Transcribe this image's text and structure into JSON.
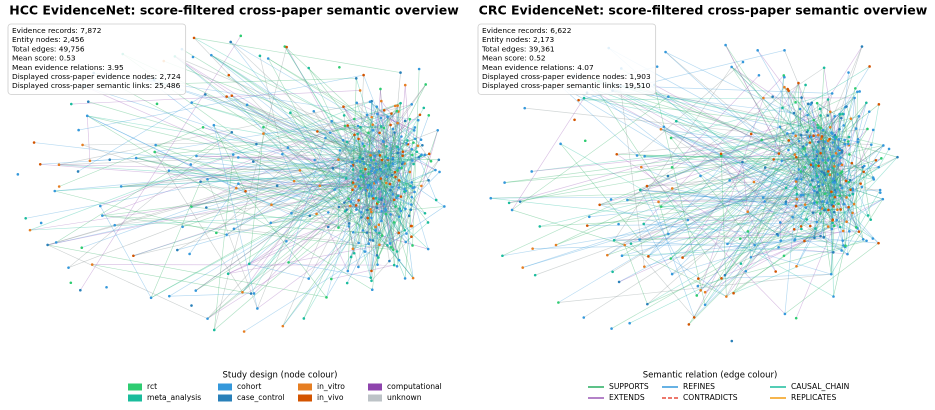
{
  "panels": [
    {
      "title": "HCC EvidenceNet: score-filtered cross-paper semantic overview",
      "stats": [
        "Evidence records: 7,872",
        "Entity nodes: 2,456",
        "Total edges: 49,756",
        "Mean score: 0.53",
        "Mean evidence relations: 3.95",
        "Displayed cross-paper evidence nodes: 2,724",
        "Displayed cross-paper semantic links: 25,486"
      ],
      "legend": {
        "title": "Study design (node colour)",
        "items": [
          {
            "label": "rct",
            "color": "#2ecc71"
          },
          {
            "label": "meta_analysis",
            "color": "#1abc9c"
          },
          {
            "label": "cohort",
            "color": "#3498db"
          },
          {
            "label": "case_control",
            "color": "#2980b9"
          },
          {
            "label": "in_vitro",
            "color": "#e67e22"
          },
          {
            "label": "in_vivo",
            "color": "#d35400"
          },
          {
            "label": "computational",
            "color": "#8e44ad"
          },
          {
            "label": "unknown",
            "color": "#bdc3c7"
          }
        ]
      }
    },
    {
      "title": "CRC EvidenceNet: score-filtered cross-paper semantic overview",
      "stats": [
        "Evidence records: 6,622",
        "Entity nodes: 2,173",
        "Total edges: 39,361",
        "Mean score: 0.52",
        "Mean evidence relations: 4.07",
        "Displayed cross-paper evidence nodes: 1,903",
        "Displayed cross-paper semantic links: 19,510"
      ],
      "legend": {
        "title": "Semantic relation (edge colour)",
        "items": [
          {
            "label": "SUPPORTS",
            "color": "#27ae60",
            "style": "solid"
          },
          {
            "label": "EXTENDS",
            "color": "#9b59b6",
            "style": "solid"
          },
          {
            "label": "REFINES",
            "color": "#3498db",
            "style": "solid"
          },
          {
            "label": "CONTRADICTS",
            "color": "#e74c3c",
            "style": "dashed"
          },
          {
            "label": "CAUSAL_CHAIN",
            "color": "#1abc9c",
            "style": "solid"
          },
          {
            "label": "REPLICATES",
            "color": "#f39c12",
            "style": "solid"
          }
        ]
      }
    }
  ]
}
